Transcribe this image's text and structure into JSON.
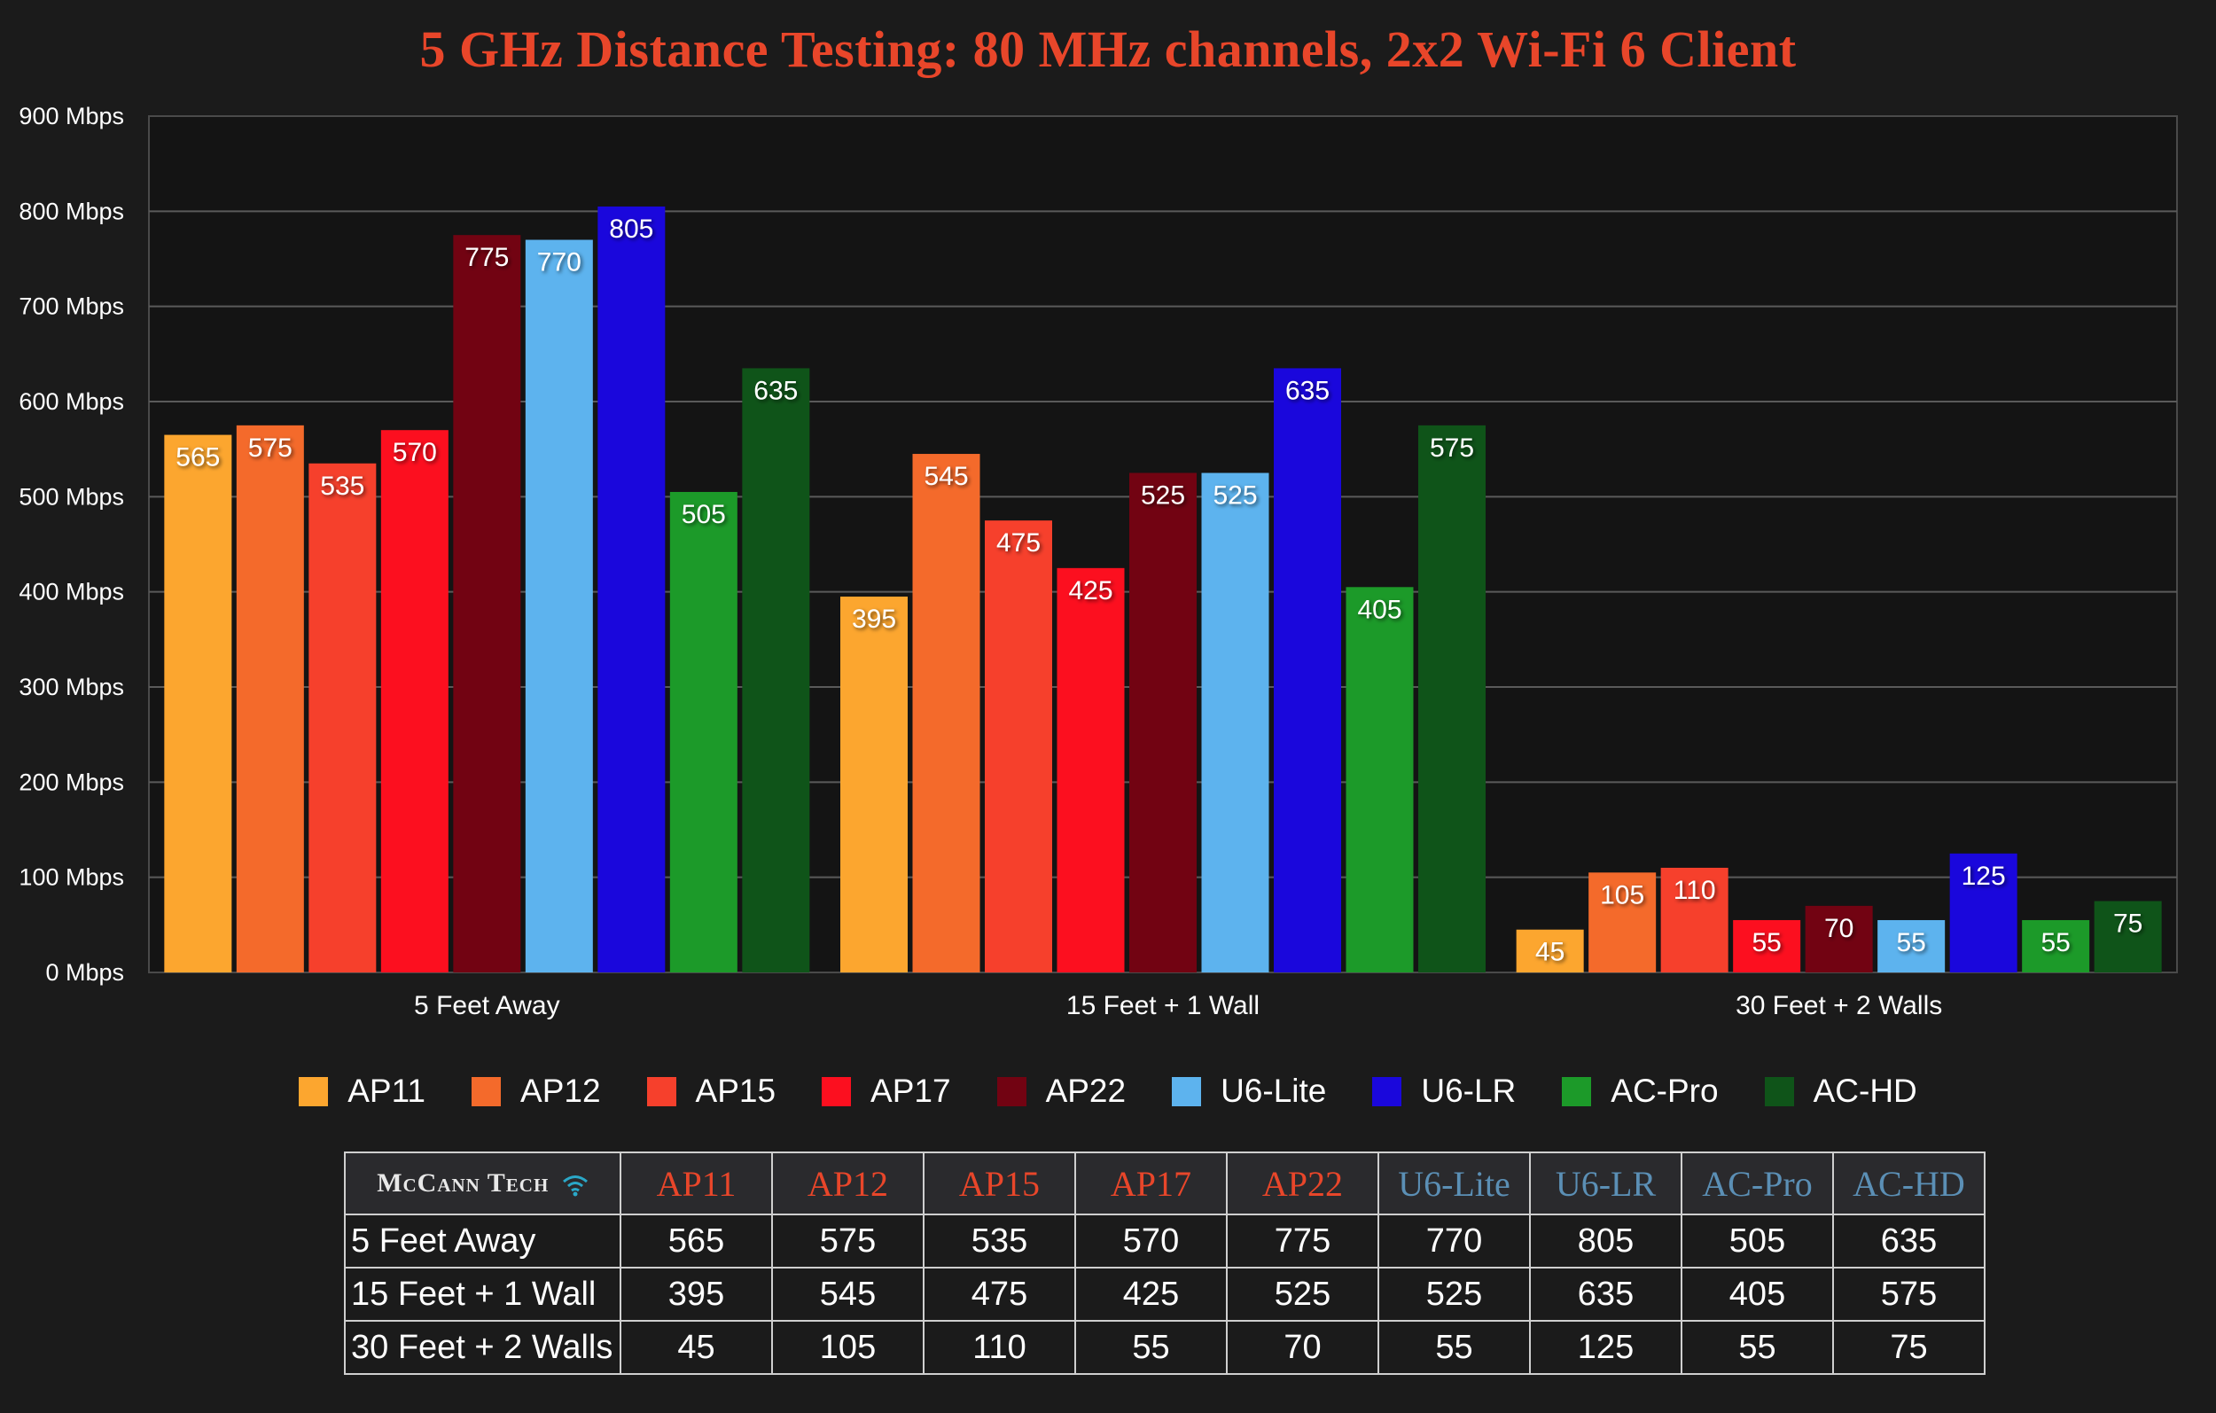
{
  "chart_data": {
    "type": "bar",
    "title": "5 GHz Distance Testing: 80 MHz channels, 2x2 Wi-Fi 6 Client",
    "categories": [
      "5 Feet Away",
      "15 Feet + 1 Wall",
      "30 Feet + 2 Walls"
    ],
    "ylim": [
      0,
      900
    ],
    "yticks": [
      0,
      100,
      200,
      300,
      400,
      500,
      600,
      700,
      800,
      900
    ],
    "ytick_labels": [
      "0 Mbps",
      "100 Mbps",
      "200 Mbps",
      "300 Mbps",
      "400 Mbps",
      "500 Mbps",
      "600 Mbps",
      "700 Mbps",
      "800 Mbps",
      "900 Mbps"
    ],
    "grid": true,
    "legend_position": "bottom",
    "series": [
      {
        "name": "AP11",
        "color": "#fca62f",
        "values": [
          565,
          395,
          45
        ]
      },
      {
        "name": "AP12",
        "color": "#f46a2b",
        "values": [
          575,
          545,
          105
        ]
      },
      {
        "name": "AP15",
        "color": "#f6402c",
        "values": [
          535,
          475,
          110
        ]
      },
      {
        "name": "AP17",
        "color": "#fc0f1f",
        "values": [
          570,
          425,
          55
        ]
      },
      {
        "name": "AP22",
        "color": "#720312",
        "values": [
          775,
          525,
          70
        ]
      },
      {
        "name": "U6-Lite",
        "color": "#5db3ee",
        "values": [
          770,
          525,
          55
        ]
      },
      {
        "name": "U6-LR",
        "color": "#1a07dc",
        "values": [
          805,
          635,
          125
        ]
      },
      {
        "name": "AC-Pro",
        "color": "#1c9a29",
        "values": [
          505,
          405,
          55
        ]
      },
      {
        "name": "AC-HD",
        "color": "#0f5419",
        "values": [
          635,
          575,
          75
        ]
      }
    ]
  },
  "table": {
    "brand": "McCann Tech",
    "header_colors": {
      "ap": "#e8462a",
      "unifi": "#5b8fb5"
    },
    "columns": [
      {
        "label": "AP11",
        "group": "ap"
      },
      {
        "label": "AP12",
        "group": "ap"
      },
      {
        "label": "AP15",
        "group": "ap"
      },
      {
        "label": "AP17",
        "group": "ap"
      },
      {
        "label": "AP22",
        "group": "ap"
      },
      {
        "label": "U6-Lite",
        "group": "unifi"
      },
      {
        "label": "U6-LR",
        "group": "unifi"
      },
      {
        "label": "AC-Pro",
        "group": "unifi"
      },
      {
        "label": "AC-HD",
        "group": "unifi"
      }
    ],
    "rows": [
      {
        "label": "5 Feet Away",
        "values": [
          "565",
          "575",
          "535",
          "570",
          "775",
          "770",
          "805",
          "505",
          "635"
        ]
      },
      {
        "label": "15 Feet + 1 Wall",
        "values": [
          "395",
          "545",
          "475",
          "425",
          "525",
          "525",
          "635",
          "405",
          "575"
        ]
      },
      {
        "label": "30 Feet + 2 Walls",
        "values": [
          "45",
          "105",
          "110",
          "55",
          "70",
          "55",
          "125",
          "55",
          "75"
        ]
      }
    ]
  }
}
